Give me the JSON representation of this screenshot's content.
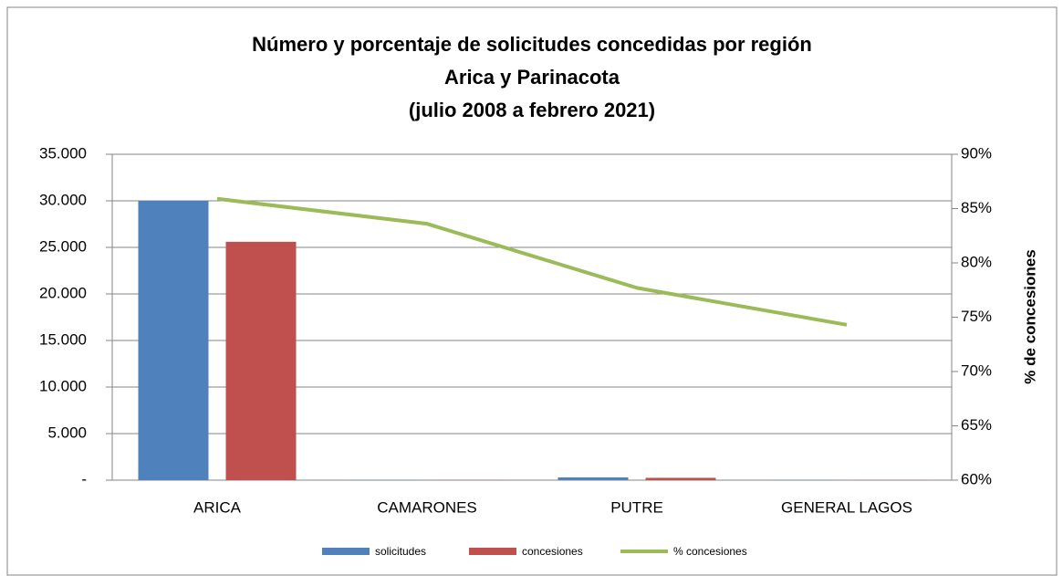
{
  "chart_data": {
    "type": "bar",
    "title": [
      "Número y porcentaje de solicitudes concedidas por región",
      "Arica y Parinacota",
      "(julio 2008 a febrero 2021)"
    ],
    "y2label": "% de concesiones",
    "categories": [
      "ARICA",
      "CAMARONES",
      "PUTRE",
      "GENERAL LAGOS"
    ],
    "series": [
      {
        "name": "solicitudes",
        "color": "#4f81bd",
        "type": "bar",
        "values": [
          30000,
          30,
          300,
          30
        ]
      },
      {
        "name": "concesiones",
        "color": "#c0504d",
        "type": "bar",
        "values": [
          25600,
          25,
          250,
          22
        ]
      },
      {
        "name": "% concesiones",
        "color": "#9bbb59",
        "type": "line",
        "axis": "y2",
        "values": [
          85.9,
          83.6,
          77.7,
          74.3
        ]
      }
    ],
    "ylim": [
      0,
      35000
    ],
    "yticks": [
      {
        "value": 0,
        "label": "-"
      },
      {
        "value": 5000,
        "label": "5.000"
      },
      {
        "value": 10000,
        "label": "10.000"
      },
      {
        "value": 15000,
        "label": "15.000"
      },
      {
        "value": 20000,
        "label": "20.000"
      },
      {
        "value": 25000,
        "label": "25.000"
      },
      {
        "value": 30000,
        "label": "30.000"
      },
      {
        "value": 35000,
        "label": "35.000"
      }
    ],
    "y2lim": [
      60,
      90
    ],
    "y2ticks": [
      {
        "value": 60,
        "label": "60%"
      },
      {
        "value": 65,
        "label": "65%"
      },
      {
        "value": 70,
        "label": "70%"
      },
      {
        "value": 75,
        "label": "75%"
      },
      {
        "value": 80,
        "label": "80%"
      },
      {
        "value": 85,
        "label": "85%"
      },
      {
        "value": 90,
        "label": "90%"
      }
    ],
    "grid": true,
    "legend": "bottom"
  }
}
